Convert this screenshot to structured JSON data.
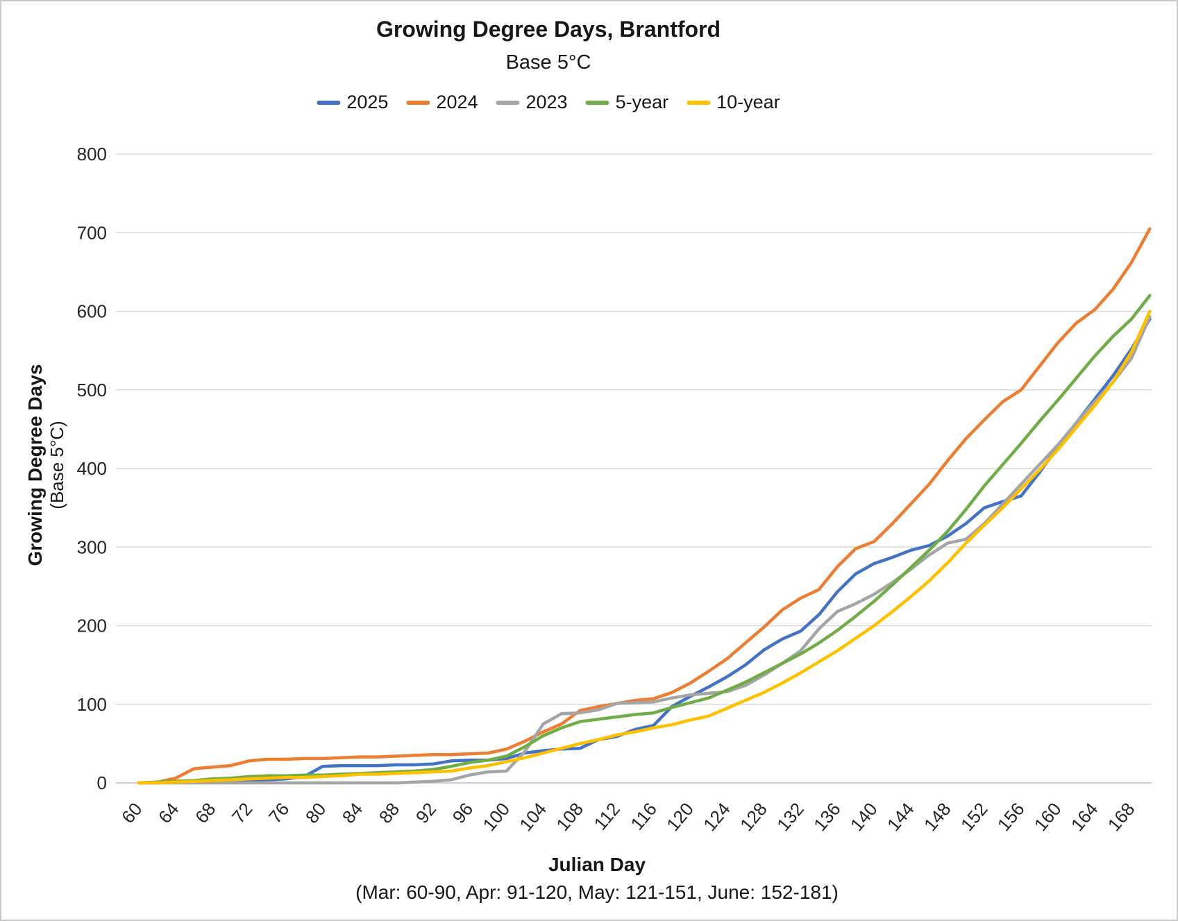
{
  "chart": {
    "title": "Growing Degree Days, Brantford",
    "subtitle": "Base 5°C",
    "y_axis_title_line1": "Growing Degree Days",
    "y_axis_title_line2": "(Base 5°C)",
    "x_axis_title": "Julian Day",
    "x_axis_note": "(Mar: 60-90, Apr: 91-120, May: 121-151, June: 152-181)"
  },
  "chart_data": {
    "type": "line",
    "title": "Growing Degree Days, Brantford",
    "subtitle": "Base 5°C",
    "xlabel": "Julian Day",
    "ylabel": "Growing Degree Days (Base 5°C)",
    "legend_position": "top",
    "grid": "horizontal",
    "grid_color": "#D9D9D9",
    "axis_line_color": "#BFBFBF",
    "ylim": [
      0,
      800
    ],
    "y_ticks": [
      0,
      100,
      200,
      300,
      400,
      500,
      600,
      700,
      800
    ],
    "x_tick_start": 60,
    "x_tick_end": 168,
    "x_tick_step": 4,
    "x": [
      60,
      62,
      64,
      66,
      68,
      70,
      72,
      74,
      76,
      78,
      80,
      82,
      84,
      86,
      88,
      90,
      92,
      94,
      96,
      98,
      100,
      102,
      104,
      106,
      108,
      110,
      112,
      114,
      116,
      118,
      120,
      122,
      124,
      126,
      128,
      130,
      132,
      134,
      136,
      138,
      140,
      142,
      144,
      146,
      148,
      150,
      152,
      154,
      156,
      158,
      160,
      162,
      164,
      166,
      168,
      170
    ],
    "series": [
      {
        "name": "2025",
        "color": "#4472C4",
        "values": [
          0,
          0,
          1,
          1,
          2,
          2,
          3,
          4,
          5,
          8,
          21,
          22,
          22,
          22,
          23,
          23,
          24,
          28,
          29,
          29,
          31,
          38,
          41,
          43,
          44,
          55,
          59,
          68,
          73,
          97,
          110,
          122,
          135,
          150,
          169,
          183,
          193,
          214,
          243,
          266,
          279,
          287,
          296,
          302,
          314,
          330,
          350,
          358,
          365,
          395,
          428,
          458,
          488,
          518,
          552,
          590
        ]
      },
      {
        "name": "2024",
        "color": "#ED7D31",
        "values": [
          0,
          1,
          6,
          18,
          20,
          22,
          28,
          30,
          30,
          31,
          31,
          32,
          33,
          33,
          34,
          35,
          36,
          36,
          37,
          38,
          43,
          53,
          65,
          75,
          92,
          97,
          101,
          105,
          107,
          115,
          127,
          142,
          158,
          178,
          198,
          220,
          235,
          246,
          275,
          298,
          307,
          330,
          355,
          380,
          410,
          438,
          462,
          485,
          500,
          530,
          560,
          585,
          602,
          628,
          662,
          705
        ]
      },
      {
        "name": "2023",
        "color": "#A5A5A5",
        "values": [
          0,
          0,
          0,
          0,
          0,
          0,
          0,
          0,
          0,
          0,
          0,
          0,
          0,
          0,
          0,
          1,
          2,
          4,
          10,
          14,
          15,
          40,
          75,
          88,
          89,
          93,
          101,
          102,
          103,
          108,
          112,
          114,
          116,
          124,
          137,
          152,
          168,
          196,
          218,
          228,
          240,
          255,
          272,
          290,
          305,
          310,
          330,
          355,
          380,
          405,
          430,
          458,
          485,
          510,
          540,
          593
        ]
      },
      {
        "name": "5-year",
        "color": "#70AD47",
        "values": [
          0,
          1,
          2,
          3,
          5,
          6,
          8,
          9,
          9,
          10,
          10,
          11,
          12,
          13,
          14,
          15,
          17,
          21,
          26,
          29,
          34,
          46,
          60,
          70,
          78,
          81,
          84,
          87,
          89,
          96,
          102,
          108,
          118,
          128,
          140,
          152,
          164,
          178,
          194,
          212,
          231,
          252,
          274,
          296,
          320,
          348,
          378,
          405,
          432,
          460,
          487,
          515,
          543,
          568,
          590,
          620
        ]
      },
      {
        "name": "10-year",
        "color": "#FFC000",
        "values": [
          0,
          0,
          1,
          2,
          3,
          4,
          5,
          6,
          7,
          7,
          8,
          9,
          11,
          11,
          12,
          13,
          14,
          15,
          19,
          22,
          27,
          32,
          38,
          44,
          50,
          55,
          61,
          65,
          70,
          74,
          80,
          85,
          95,
          105,
          115,
          127,
          140,
          154,
          168,
          184,
          200,
          218,
          237,
          257,
          280,
          305,
          328,
          350,
          374,
          398,
          424,
          452,
          480,
          510,
          548,
          600
        ]
      }
    ]
  }
}
